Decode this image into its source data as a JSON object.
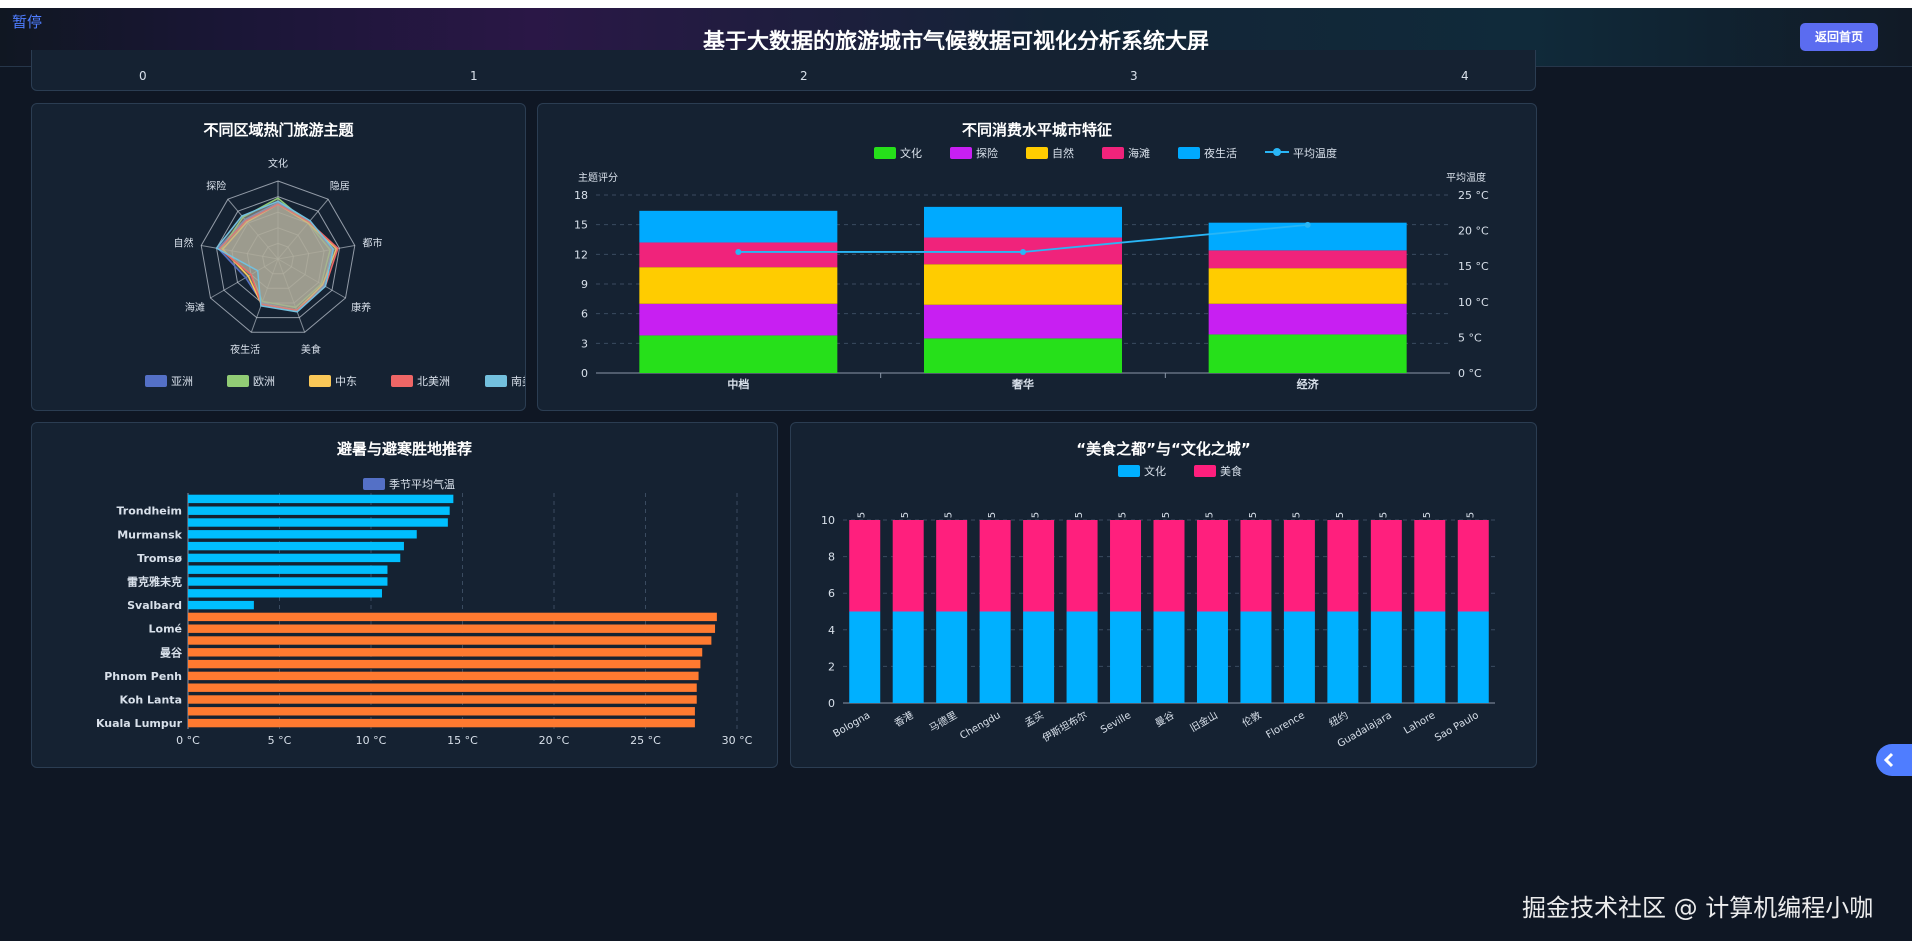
{
  "app": {
    "title": "基于大数据的旅游城市气候数据可视化分析系统大屏",
    "pause_label": "暂停",
    "back_button": "返回首页",
    "watermark": "掘金技术社区 @ 计算机编程小咖"
  },
  "top_axis": {
    "ticks": [
      "0",
      "1",
      "2",
      "3",
      "4"
    ]
  },
  "radar": {
    "title": "不同区域热门旅游主题",
    "indicators": [
      "文化",
      "隐居",
      "都市",
      "康养",
      "美食",
      "夜生活",
      "海滩",
      "自然",
      "探险"
    ],
    "series": [
      {
        "name": "亚洲",
        "color": "#5470c6",
        "values": [
          0.72,
          0.62,
          0.7,
          0.68,
          0.7,
          0.6,
          0.48,
          0.78,
          0.66
        ]
      },
      {
        "name": "欧洲",
        "color": "#91cc75",
        "values": [
          0.78,
          0.6,
          0.68,
          0.64,
          0.66,
          0.58,
          0.4,
          0.74,
          0.7
        ]
      },
      {
        "name": "中东",
        "color": "#fac858",
        "values": [
          0.7,
          0.6,
          0.76,
          0.66,
          0.7,
          0.62,
          0.44,
          0.72,
          0.62
        ]
      },
      {
        "name": "北美洲",
        "color": "#ee6666",
        "values": [
          0.7,
          0.62,
          0.78,
          0.7,
          0.7,
          0.62,
          0.4,
          0.76,
          0.64
        ]
      },
      {
        "name": "南美洲",
        "color": "#73c0de",
        "values": [
          0.74,
          0.64,
          0.72,
          0.7,
          0.72,
          0.64,
          0.3,
          0.8,
          0.72
        ]
      }
    ]
  },
  "consumption": {
    "title": "不同消费水平城市特征",
    "ylabel_left": "主题评分",
    "ylabel_right": "平均温度",
    "categories": [
      "中档",
      "奢华",
      "经济"
    ],
    "left_ticks": [
      "0",
      "3",
      "6",
      "9",
      "12",
      "15",
      "18"
    ],
    "right_ticks": [
      "0 °C",
      "5 °C",
      "10 °C",
      "15 °C",
      "20 °C",
      "25 °C"
    ],
    "ylim": [
      0,
      18
    ],
    "y2lim": [
      0,
      25
    ],
    "series": [
      {
        "name": "文化",
        "color": "#26e01a",
        "values": [
          3.8,
          3.5,
          3.9
        ]
      },
      {
        "name": "探险",
        "color": "#c81ff2",
        "values": [
          3.2,
          3.4,
          3.1
        ]
      },
      {
        "name": "自然",
        "color": "#ffcc00",
        "values": [
          3.7,
          4.1,
          3.6
        ]
      },
      {
        "name": "海滩",
        "color": "#f0237b",
        "values": [
          2.5,
          2.7,
          1.8
        ]
      },
      {
        "name": "夜生活",
        "color": "#00aaff",
        "values": [
          3.2,
          3.1,
          2.8
        ]
      }
    ],
    "line": {
      "name": "平均温度",
      "color": "#29b6f6",
      "values": [
        17.0,
        17.0,
        20.8
      ]
    }
  },
  "climate": {
    "title": "避暑与避寒胜地推荐",
    "legend": "季节平均气温",
    "legend_color": "#5470c6",
    "cities": [
      "Trondheim",
      "Murmansk",
      "Tromsø",
      "雷克雅未克",
      "Svalbard",
      "Lomé",
      "曼谷",
      "Phnom Penh",
      "Koh Lanta",
      "Kuala Lumpur"
    ],
    "x_ticks": [
      "0 °C",
      "5 °C",
      "10 °C",
      "15 °C",
      "20 °C",
      "25 °C",
      "30 °C"
    ],
    "xlim": [
      0,
      30
    ],
    "values": [
      14.5,
      14.3,
      14.2,
      12.5,
      11.8,
      11.6,
      10.9,
      10.9,
      10.6,
      3.6,
      28.9,
      28.8,
      28.6,
      28.1,
      28.0,
      27.9,
      27.8,
      27.8,
      27.7,
      27.7
    ],
    "cool_color": "#00bfff",
    "warm_color": "#ff7a30"
  },
  "foodculture": {
    "title": "“美食之都”与“文化之城”",
    "y_ticks": [
      "0",
      "2",
      "4",
      "6",
      "8",
      "10"
    ],
    "ylim": [
      0,
      10
    ],
    "categories": [
      "Bologna",
      "香港",
      "马德里",
      "Chengdu",
      "孟买",
      "伊斯坦布尔",
      "Seville",
      "曼谷",
      "旧金山",
      "伦敦",
      "Florence",
      "纽约",
      "Guadalajara",
      "Lahore",
      "Sao Paulo"
    ],
    "series": [
      {
        "name": "文化",
        "color": "#00b0ff",
        "values": [
          5,
          5,
          5,
          5,
          5,
          5,
          5,
          5,
          5,
          5,
          5,
          5,
          5,
          5,
          5
        ]
      },
      {
        "name": "美食",
        "color": "#ff1f7d",
        "values": [
          5,
          5,
          5,
          5,
          5,
          5,
          5,
          5,
          5,
          5,
          5,
          5,
          5,
          5,
          5
        ]
      }
    ],
    "top_labels": [
      "5",
      "5",
      "5",
      "5",
      "5",
      "5",
      "5",
      "5",
      "5",
      "5",
      "5",
      "5",
      "5",
      "5",
      "5"
    ]
  }
}
